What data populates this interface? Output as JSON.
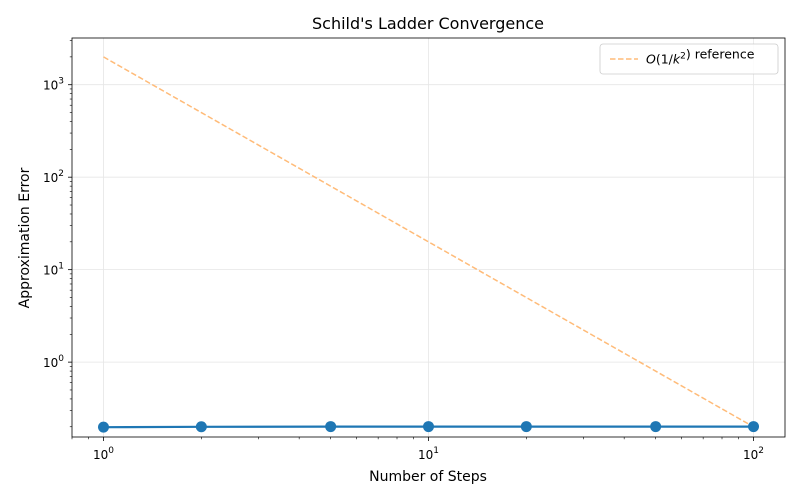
{
  "chart_data": {
    "type": "line",
    "title": "Schild's Ladder Convergence",
    "xlabel": "Number of Steps",
    "ylabel": "Approximation Error",
    "xscale": "log",
    "yscale": "log",
    "xlim": [
      0.8,
      125
    ],
    "ylim": [
      0.155,
      3200
    ],
    "xticks": [
      {
        "value": 1,
        "base": "10",
        "exp": "0"
      },
      {
        "value": 10,
        "base": "10",
        "exp": "1"
      },
      {
        "value": 100,
        "base": "10",
        "exp": "2"
      }
    ],
    "yticks": [
      {
        "value": 1,
        "base": "10",
        "exp": "0"
      },
      {
        "value": 10,
        "base": "10",
        "exp": "1"
      },
      {
        "value": 100,
        "base": "10",
        "exp": "2"
      },
      {
        "value": 1000,
        "base": "10",
        "exp": "3"
      }
    ],
    "grid": true,
    "legend_position": "top-right",
    "series": [
      {
        "x": [
          1,
          2,
          5,
          10,
          20,
          50,
          100
        ],
        "y": [
          0.198,
          0.2,
          0.201,
          0.201,
          0.201,
          0.201,
          0.201
        ],
        "color": "#1f77b4",
        "style": "solid",
        "marker": "circle"
      },
      {
        "name": "O(1/k²) reference",
        "x": [
          1,
          100
        ],
        "y": [
          2000,
          0.2
        ],
        "color": "#ffbb78",
        "style": "dashed",
        "marker": "none"
      }
    ],
    "legend": {
      "entries": [
        {
          "prefix": "O(1/",
          "var": "k",
          "sup": "2",
          "suffix": ") reference"
        }
      ]
    }
  }
}
